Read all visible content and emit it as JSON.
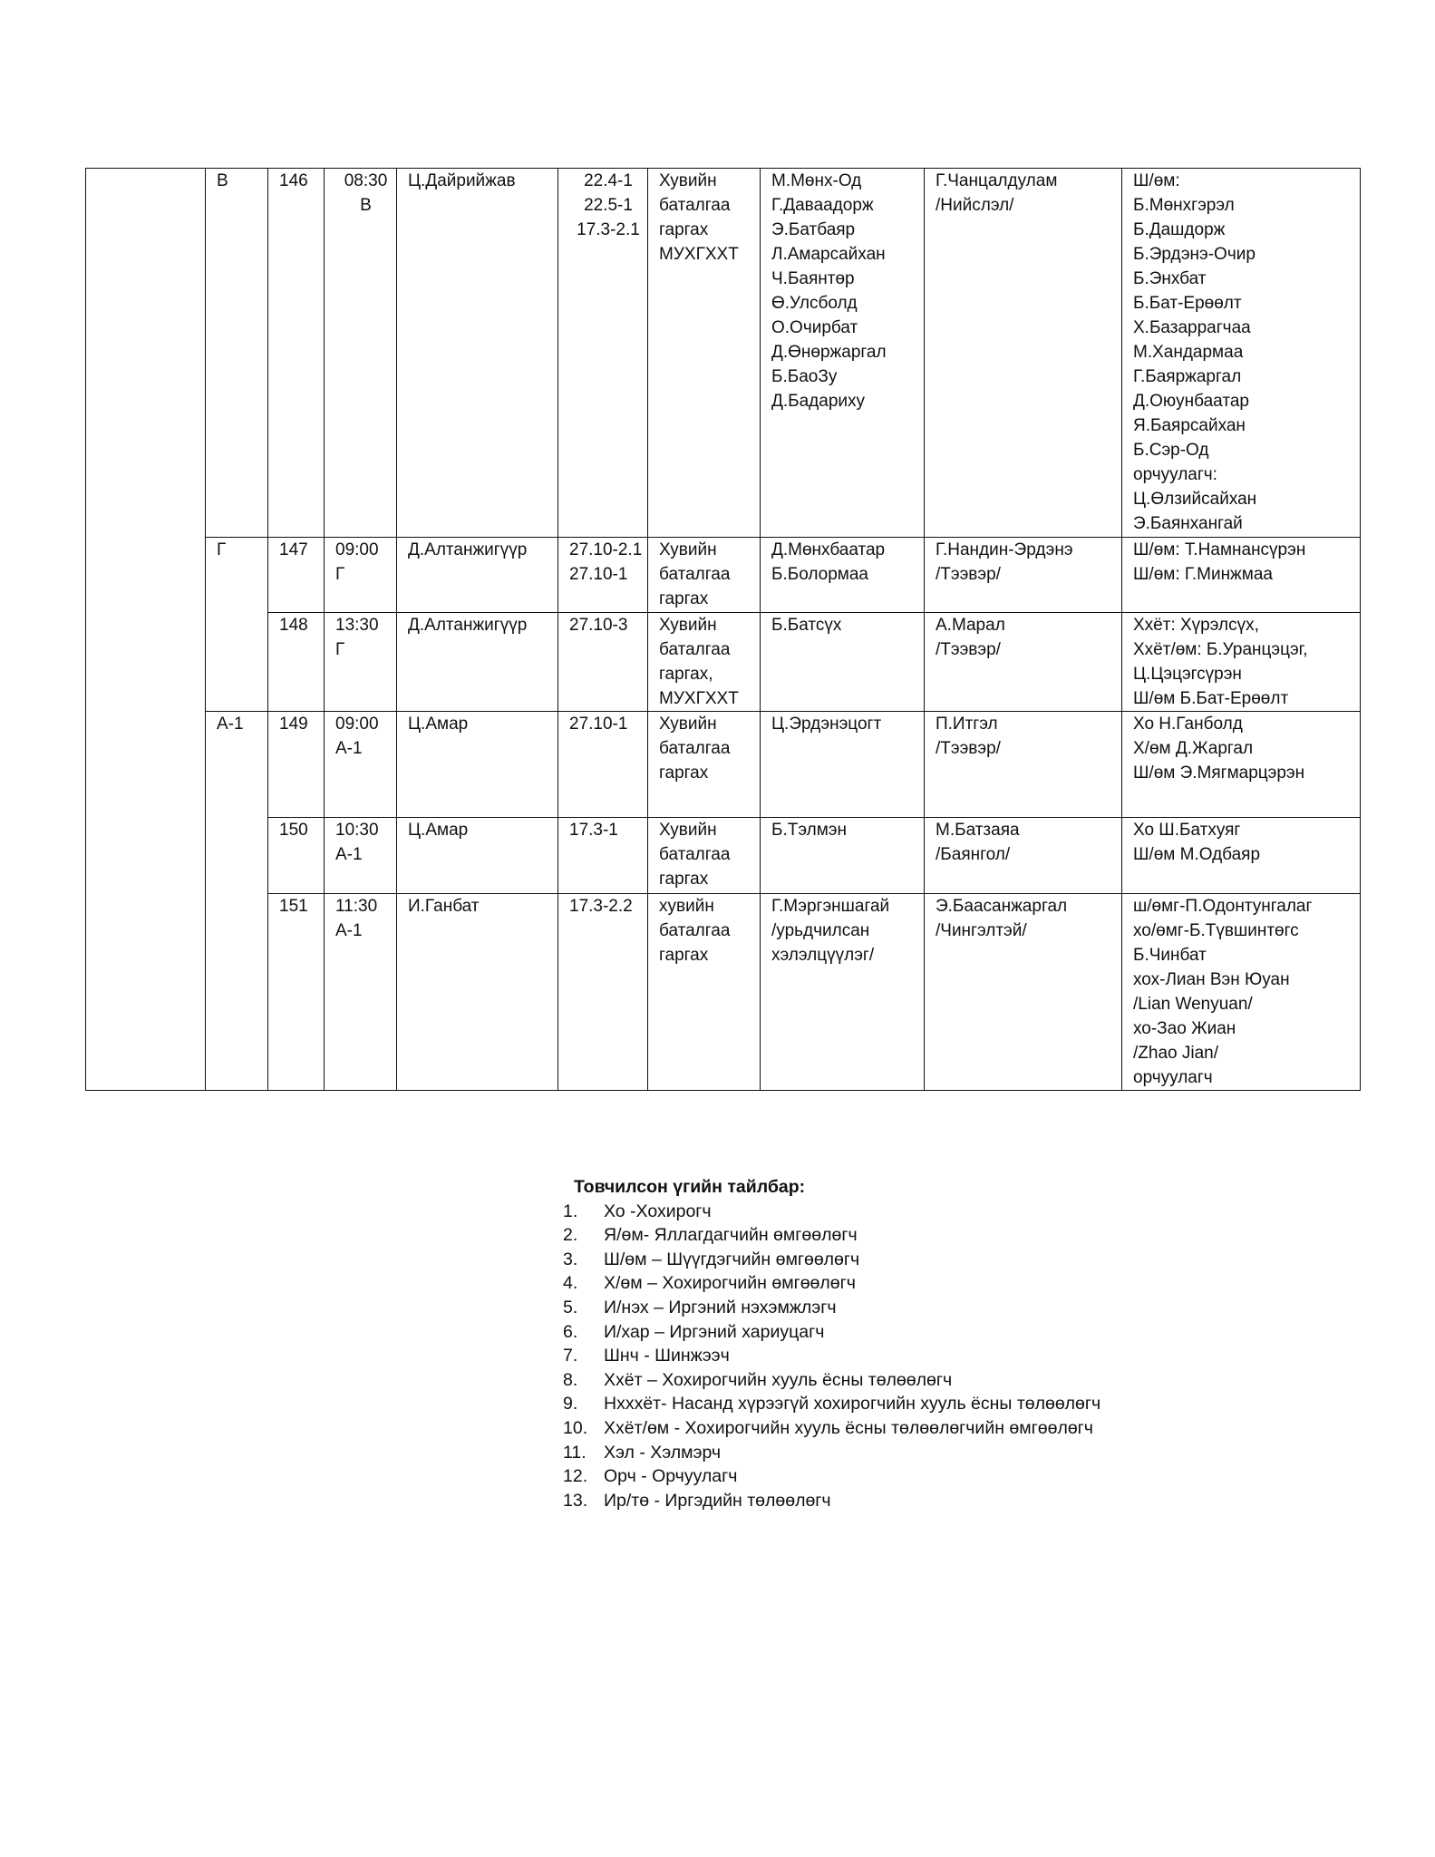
{
  "table": {
    "groups": [
      "В",
      "Г",
      "А-1"
    ],
    "rows": [
      {
        "no": "146",
        "time": "08:30\nВ",
        "judge": "Ц.Дайрийжав",
        "article": "22.4-1\n22.5-1\n17.3-2.1",
        "action": "Хувийн\nбаталгаа\nгаргах\nМУХГХХТ",
        "defendants": "М.Мөнх-Од\nГ.Даваадорж\nЭ.Батбаяр\nЛ.Амарсайхан\nЧ.Баянтөр\nӨ.Улсболд\nО.Очирбат\nД.Өнөржаргал\nБ.БаоЗу\nД.Бадарихy",
        "prosecutor": "Г.Чанцалдулам\n/Нийслэл/",
        "participants": "Ш/өм:\nБ.Мөнхгэрэл\nБ.Дашдорж\nБ.Эрдэнэ-Очир\nБ.Энхбат\nБ.Бат-Ерөөлт\nХ.Базаррагчаа\nМ.Хандармаа\nГ.Баяржаргал\nД.Оюунбаатар\nЯ.Баярсайхан\nБ.Сэр-Од\nорчуулагч:\nЦ.Өлзийсайхан\nЭ.Баянхангай"
      },
      {
        "no": "147",
        "time": "09:00\nГ",
        "judge": "Д.Алтанжигүүр",
        "article": "27.10-2.1\n27.10-1",
        "action": "Хувийн\nбаталгаа\n гаргах",
        "defendants": "Д.Мөнхбаатар\nБ.Болормаа",
        "prosecutor": "Г.Нандин-Эрдэнэ\n/Тээвэр/",
        "participants": "Ш/өм: Т.Намнансүрэн\nШ/өм: Г.Минжмаа"
      },
      {
        "no": "148",
        "time": "13:30\nГ",
        "judge": "Д.Алтанжигүүр",
        "article": "27.10-3",
        "action": "Хувийн\n баталгаа\n гаргах,\nМУХГХХТ",
        "defendants": "Б.Батсүх",
        "prosecutor": "А.Марал\n/Тээвэр/",
        "participants": "Ххёт: Хүрэлсүх,\nХхёт/өм: Б.Уранцэцэг,\nЦ.Цэцэгсүрэн\nШ/өм Б.Бат-Ерөөлт"
      },
      {
        "no": "149",
        "time": "09:00\nА-1",
        "judge": "Ц.Амар",
        "article": "27.10-1",
        "action": "Хувийн\nбаталгаа\nгаргах",
        "defendants": "Ц.Эрдэнэцогт",
        "prosecutor": "П.Итгэл\n/Тээвэр/",
        "participants": "Хо Н.Ганболд\nХ/өм Д.Жаргал\nШ/өм Э.Мягмарцэрэн"
      },
      {
        "no": "150",
        "time": "10:30\nА-1",
        "judge": "Ц.Амар",
        "article": "17.3-1",
        "action": "Хувийн\nбаталгаа\nгаргах",
        "defendants": "Б.Тэлмэн",
        "prosecutor": "М.Батзаяа\n/Баянгол/",
        "participants": "Хо Ш.Батхуяг\nШ/өм М.Одбаяр"
      },
      {
        "no": "151",
        "time": "11:30\nА-1",
        "judge": "И.Ганбат",
        "article": "17.3-2.2",
        "action": "хувийн\nбаталгаа\nгаргах",
        "defendants": "Г.Мэргэншагай\n/урьдчилсан\nхэлэлцүүлэг/",
        "prosecutor": "Э.Баасанжаргал\n/Чингэлтэй/",
        "participants": "ш/өмг-П.Одонтунгалаг\nхо/өмг-Б.Түвшинтөгс\nБ.Чинбат\nхох-Лиан Вэн Юуан\n/Lian Wenyuan/\n хо-Зао Жиан\n/Zhao Jian/\nорчуулагч"
      }
    ]
  },
  "legend": {
    "title": "Товчилсон үгийн тайлбар:",
    "items": [
      {
        "n": "1.",
        "t": "Хо -Хохирогч"
      },
      {
        "n": "2.",
        "t": "Я/өм- Яллагдагчийн өмгөөлөгч"
      },
      {
        "n": "3.",
        "t": "Ш/өм – Шүүгдэгчийн өмгөөлөгч"
      },
      {
        "n": "4.",
        "t": "Х/өм – Хохирогчийн өмгөөлөгч"
      },
      {
        "n": "5.",
        "t": "И/нэх – Иргэний нэхэмжлэгч"
      },
      {
        "n": "6.",
        "t": "И/хар – Иргэний хариуцагч"
      },
      {
        "n": "7.",
        "t": "Шнч - Шинжээч"
      },
      {
        "n": "8.",
        "t": "Ххёт – Хохирогчийн хууль ёсны төлөөлөгч"
      },
      {
        "n": "9.",
        "t": "Нхххёт- Насанд хүрээгүй хохирогчийн хууль ёсны төлөөлөгч"
      },
      {
        "n": "10.",
        "t": "Ххёт/өм - Хохирогчийн хууль ёсны төлөөлөгчийн өмгөөлөгч"
      },
      {
        "n": "11.",
        "t": "Хэл - Хэлмэрч"
      },
      {
        "n": "12.",
        "t": "Орч - Орчуулагч"
      },
      {
        "n": "13.",
        "t": "Ир/тө - Иргэдийн төлөөлөгч"
      }
    ]
  }
}
